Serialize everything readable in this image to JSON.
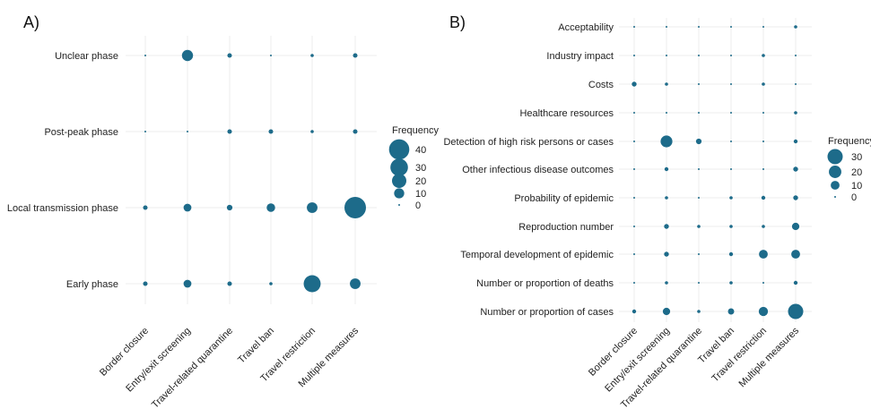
{
  "colors": {
    "point": "#1d6b8a",
    "grid": "#ececec",
    "text": "#222222"
  },
  "chart_data": [
    {
      "type": "scatter",
      "panel_label": "A)",
      "title": "",
      "xlabel": "",
      "ylabel": "",
      "grid": true,
      "legend_position": "right",
      "categories_x": [
        "Border closure",
        "Entry/exit screening",
        "Travel-related quarantine",
        "Travel ban",
        "Travel restriction",
        "Multiple measures"
      ],
      "categories_y": [
        "Unclear phase",
        "Post-peak phase",
        "Local transmission phase",
        "Early phase"
      ],
      "values": [
        [
          0,
          12,
          2,
          0,
          1,
          2
        ],
        [
          0,
          0,
          2,
          2,
          1,
          2
        ],
        [
          2,
          6,
          3,
          7,
          11,
          45
        ],
        [
          2,
          6,
          2,
          1,
          28,
          11
        ]
      ],
      "legend": {
        "title": "Frequency",
        "entries": [
          40,
          30,
          20,
          10,
          0
        ]
      }
    },
    {
      "type": "scatter",
      "panel_label": "B)",
      "title": "",
      "xlabel": "",
      "ylabel": "",
      "grid": true,
      "legend_position": "right",
      "categories_x": [
        "Border closure",
        "Entry/exit screening",
        "Travel-related quarantine",
        "Travel ban",
        "Travel restriction",
        "Multiple measures"
      ],
      "categories_y": [
        "Acceptability",
        "Industry impact",
        "Costs",
        "Healthcare resources",
        "Detection of high risk persons or cases",
        "Other infectious disease outcomes",
        "Probability of epidemic",
        "Reproduction number",
        "Temporal development of epidemic",
        "Number or proportion of deaths",
        "Number or proportion of cases"
      ],
      "values": [
        [
          0,
          0,
          0,
          0,
          0,
          1
        ],
        [
          0,
          0,
          0,
          0,
          1,
          0
        ],
        [
          3,
          1,
          0,
          0,
          1,
          0
        ],
        [
          0,
          0,
          0,
          0,
          0,
          1
        ],
        [
          0,
          18,
          4,
          0,
          0,
          2
        ],
        [
          0,
          2,
          0,
          0,
          0,
          3
        ],
        [
          0,
          1,
          0,
          1,
          2,
          3
        ],
        [
          0,
          3,
          1,
          1,
          1,
          7
        ],
        [
          0,
          3,
          0,
          2,
          10,
          10
        ],
        [
          0,
          1,
          0,
          1,
          0,
          2
        ],
        [
          2,
          7,
          1,
          5,
          11,
          30
        ]
      ],
      "legend": {
        "title": "Frequency",
        "entries": [
          30,
          20,
          10,
          0
        ]
      }
    }
  ]
}
